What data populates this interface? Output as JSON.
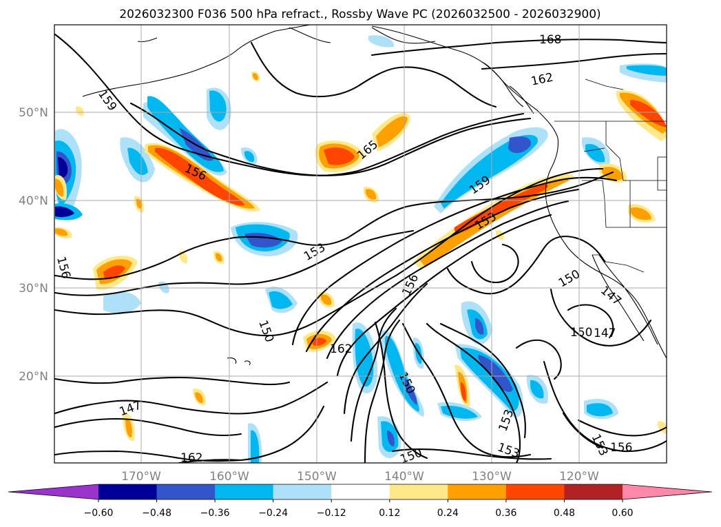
{
  "title": "2026032300 F036 500 hPa refract., Rossby Wave PC (2026032500 - 2026032900)",
  "lat_labels": [
    "50°N",
    "40°N",
    "30°N",
    "20°N"
  ],
  "lon_labels": [
    "170°W",
    "160°W",
    "150°W",
    "140°W",
    "130°W",
    "120°W"
  ],
  "colorbar": {
    "ticks": [
      "−0.60",
      "−0.48",
      "−0.36",
      "−0.24",
      "−0.12",
      "0.12",
      "0.24",
      "0.36",
      "0.48",
      "0.60"
    ],
    "colors": [
      "#9933cc",
      "#000099",
      "#3355cc",
      "#00b7f0",
      "#aee0f8",
      "#ffffff",
      "#ffe88a",
      "#ffa000",
      "#ff4500",
      "#b22222",
      "#ff88aa"
    ]
  },
  "contour_labels": [
    "168",
    "162",
    "159",
    "165",
    "156",
    "159",
    "153",
    "153",
    "156",
    "156",
    "150",
    "150",
    "147",
    "147",
    "162",
    "150",
    "150",
    "147",
    "162",
    "153",
    "153",
    "153",
    "156"
  ],
  "shading_colors": {
    "neg_light": "#aee0f8",
    "neg_mid": "#00b7f0",
    "neg_strong": "#3355cc",
    "neg_max": "#000099",
    "pos_light": "#ffe88a",
    "pos_mid": "#ffa000",
    "pos_strong": "#ff4500"
  }
}
